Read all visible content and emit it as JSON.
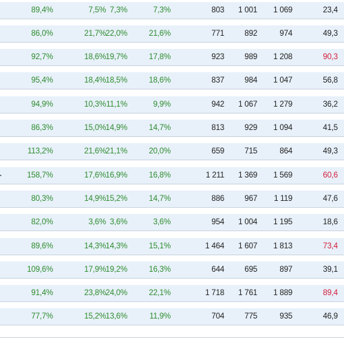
{
  "rows": [
    {
      "c1": "89,4%",
      "c2": "7,5%",
      "c3": "7,3%",
      "c4": "7,3%",
      "c5": "803",
      "c6": "1 001",
      "c7": "1 069",
      "c8": "23,4",
      "highlight": false
    },
    {
      "c1": "86,0%",
      "c2": "21,7%",
      "c3": "22,0%",
      "c4": "21,6%",
      "c5": "771",
      "c6": "892",
      "c7": "974",
      "c8": "49,3",
      "highlight": false
    },
    {
      "c1": "92,7%",
      "c2": "18,6%",
      "c3": "19,7%",
      "c4": "17,8%",
      "c5": "923",
      "c6": "989",
      "c7": "1 208",
      "c8": "90,3",
      "highlight": true
    },
    {
      "c1": "95,4%",
      "c2": "18,4%",
      "c3": "18,5%",
      "c4": "18,6%",
      "c5": "837",
      "c6": "984",
      "c7": "1 047",
      "c8": "56,8",
      "highlight": false
    },
    {
      "c1": "94,9%",
      "c2": "10,3%",
      "c3": "11,1%",
      "c4": "9,9%",
      "c5": "942",
      "c6": "1 067",
      "c7": "1 279",
      "c8": "36,2",
      "highlight": false
    },
    {
      "c1": "86,3%",
      "c2": "15,0%",
      "c3": "14,9%",
      "c4": "14,7%",
      "c5": "813",
      "c6": "929",
      "c7": "1 094",
      "c8": "41,5",
      "highlight": false
    },
    {
      "c1": "113,2%",
      "c2": "21,6%",
      "c3": "21,1%",
      "c4": "20,0%",
      "c5": "659",
      "c6": "715",
      "c7": "864",
      "c8": "49,3",
      "highlight": false
    },
    {
      "c1": "158,7%",
      "c2": "17,6%",
      "c3": "16,9%",
      "c4": "16,8%",
      "c5": "1 211",
      "c6": "1 369",
      "c7": "1 569",
      "c8": "60,6",
      "highlight": true
    },
    {
      "c1": "80,3%",
      "c2": "14,9%",
      "c3": "15,2%",
      "c4": "14,7%",
      "c5": "886",
      "c6": "967",
      "c7": "1 119",
      "c8": "47,6",
      "highlight": false
    },
    {
      "c1": "82,0%",
      "c2": "3,6%",
      "c3": "3,6%",
      "c4": "3,6%",
      "c5": "954",
      "c6": "1 004",
      "c7": "1 195",
      "c8": "18,6",
      "highlight": false
    },
    {
      "c1": "89,6%",
      "c2": "14,3%",
      "c3": "14,3%",
      "c4": "15,1%",
      "c5": "1 464",
      "c6": "1 607",
      "c7": "1 813",
      "c8": "73,4",
      "highlight": true
    },
    {
      "c1": "109,6%",
      "c2": "17,9%",
      "c3": "19,2%",
      "c4": "16,3%",
      "c5": "644",
      "c6": "695",
      "c7": "897",
      "c8": "39,1",
      "highlight": false
    },
    {
      "c1": "91,4%",
      "c2": "23,8%",
      "c3": "24,0%",
      "c4": "22,1%",
      "c5": "1 718",
      "c6": "1 761",
      "c7": "1 889",
      "c8": "89,4",
      "highlight": true
    },
    {
      "c1": "77,7%",
      "c2": "15,2%",
      "c3": "13,6%",
      "c4": "11,9%",
      "c5": "704",
      "c6": "775",
      "c7": "935",
      "c8": "46,9",
      "highlight": false
    }
  ],
  "colors": {
    "percent_text": "#2e8b2e",
    "number_text": "#222222",
    "highlight_text": "#d21f3c",
    "row_shade": "#e8f1fa",
    "row_border": "#c9d3de"
  }
}
